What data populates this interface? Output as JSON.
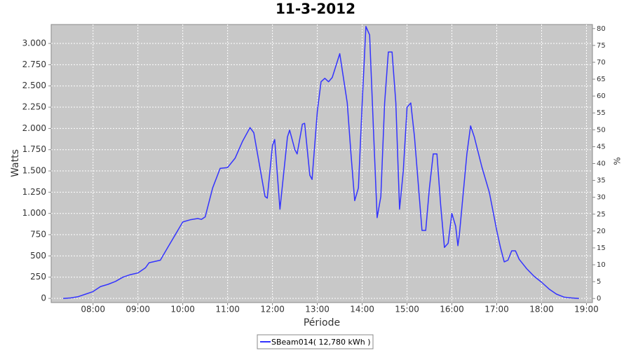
{
  "chart_data": {
    "type": "line",
    "title": "11-3-2012",
    "xlabel": "Période",
    "ylabel": "Watts",
    "y2label": "%",
    "x": [
      "07:20",
      "07:30",
      "07:40",
      "07:50",
      "08:00",
      "08:10",
      "08:20",
      "08:30",
      "08:40",
      "08:50",
      "09:00",
      "09:10",
      "09:15",
      "09:30",
      "09:40",
      "09:50",
      "10:00",
      "10:10",
      "10:20",
      "10:25",
      "10:30",
      "10:40",
      "10:50",
      "11:00",
      "11:10",
      "11:20",
      "11:30",
      "11:35",
      "11:40",
      "11:50",
      "11:53",
      "12:00",
      "12:03",
      "12:10",
      "12:20",
      "12:23",
      "12:30",
      "12:33",
      "12:40",
      "12:43",
      "12:50",
      "12:53",
      "13:00",
      "13:05",
      "13:10",
      "13:15",
      "13:20",
      "13:30",
      "13:40",
      "13:45",
      "13:50",
      "13:55",
      "14:00",
      "14:05",
      "14:10",
      "14:15",
      "14:20",
      "14:25",
      "14:30",
      "14:35",
      "14:40",
      "14:45",
      "14:50",
      "14:55",
      "15:00",
      "15:05",
      "15:10",
      "15:20",
      "15:25",
      "15:30",
      "15:35",
      "15:40",
      "15:45",
      "15:50",
      "15:55",
      "16:00",
      "16:05",
      "16:08",
      "16:10",
      "16:20",
      "16:25",
      "16:30",
      "16:40",
      "16:50",
      "17:00",
      "17:05",
      "17:10",
      "17:15",
      "17:20",
      "17:25",
      "17:30",
      "17:40",
      "17:50",
      "18:00",
      "18:10",
      "18:20",
      "18:30",
      "18:40",
      "18:50"
    ],
    "series": [
      {
        "name": "SBeam014( 12,780 kWh )",
        "color": "#3333ff",
        "values": [
          0,
          5,
          20,
          50,
          80,
          140,
          165,
          200,
          250,
          280,
          300,
          360,
          420,
          450,
          600,
          750,
          900,
          925,
          940,
          930,
          960,
          1300,
          1530,
          1540,
          1650,
          1850,
          2010,
          1950,
          1700,
          1200,
          1180,
          1800,
          1870,
          1050,
          1900,
          1980,
          1750,
          1700,
          2050,
          2060,
          1450,
          1400,
          2200,
          2550,
          2590,
          2550,
          2600,
          2880,
          2300,
          1700,
          1150,
          1300,
          2300,
          3200,
          3100,
          2000,
          950,
          1200,
          2300,
          2900,
          2900,
          2300,
          1050,
          1500,
          2250,
          2300,
          1900,
          800,
          800,
          1300,
          1700,
          1700,
          1100,
          600,
          650,
          1000,
          850,
          620,
          750,
          1700,
          2030,
          1900,
          1550,
          1250,
          800,
          600,
          430,
          450,
          560,
          560,
          460,
          350,
          260,
          190,
          110,
          50,
          15,
          5,
          0
        ]
      }
    ],
    "xlim": [
      "07:04",
      "19:08"
    ],
    "xticks": [
      "08:00",
      "09:00",
      "10:00",
      "11:00",
      "12:00",
      "13:00",
      "14:00",
      "15:00",
      "16:00",
      "17:00",
      "18:00",
      "19:00"
    ],
    "ylim": [
      -49,
      3223
    ],
    "yticks": [
      0,
      250,
      500,
      750,
      {
        "value": 1000,
        "label": "1.000"
      },
      {
        "value": 1250,
        "label": "1.250"
      },
      {
        "value": 1500,
        "label": "1.500"
      },
      {
        "value": 1750,
        "label": "1.750"
      },
      {
        "value": 2000,
        "label": "2.000"
      },
      {
        "value": 2250,
        "label": "2.250"
      },
      {
        "value": 2500,
        "label": "2.500"
      },
      {
        "value": 2750,
        "label": "2.750"
      },
      {
        "value": 3000,
        "label": "3.000"
      }
    ],
    "y2lim": [
      -1.2,
      81.2
    ],
    "y2ticks": [
      0,
      5,
      10,
      15,
      20,
      25,
      30,
      35,
      40,
      45,
      50,
      55,
      60,
      65,
      70,
      75,
      80
    ],
    "grid": true
  }
}
